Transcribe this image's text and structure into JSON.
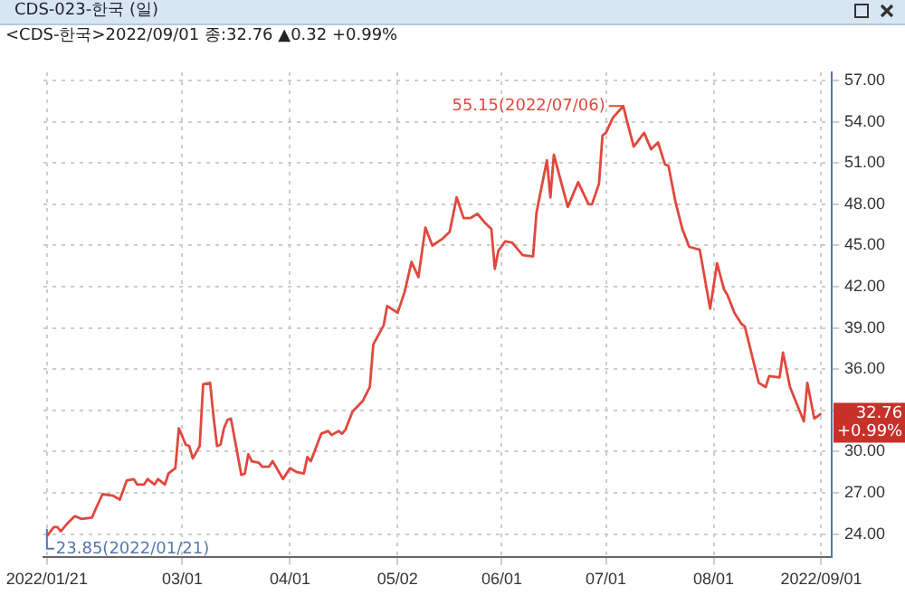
{
  "chart_data": {
    "type": "line",
    "title": "CDS-023-한국 (일)",
    "subtitle": "<CDS-한국>2022/09/01 종:32.76 ▲0.32 +0.99%",
    "x": [
      "2022-01-21",
      "2022-01-23",
      "2022-01-24",
      "2022-01-25",
      "2022-01-27",
      "2022-01-29",
      "2022-01-31",
      "2022-02-03",
      "2022-02-04",
      "2022-02-06",
      "2022-02-09",
      "2022-02-11",
      "2022-02-13",
      "2022-02-15",
      "2022-02-16",
      "2022-02-18",
      "2022-02-19",
      "2022-02-21",
      "2022-02-22",
      "2022-02-24",
      "2022-02-25",
      "2022-02-27",
      "2022-02-28",
      "2022-03-02",
      "2022-03-03",
      "2022-03-04",
      "2022-03-06",
      "2022-03-07",
      "2022-03-09",
      "2022-03-10",
      "2022-03-11",
      "2022-03-12",
      "2022-03-13",
      "2022-03-14",
      "2022-03-15",
      "2022-03-18",
      "2022-03-19",
      "2022-03-20",
      "2022-03-21",
      "2022-03-23",
      "2022-03-24",
      "2022-03-26",
      "2022-03-27",
      "2022-03-30",
      "2022-04-01",
      "2022-04-03",
      "2022-04-05",
      "2022-04-06",
      "2022-04-07",
      "2022-04-10",
      "2022-04-12",
      "2022-04-13",
      "2022-04-15",
      "2022-04-16",
      "2022-04-17",
      "2022-04-19",
      "2022-04-22",
      "2022-04-24",
      "2022-04-25",
      "2022-04-28",
      "2022-04-29",
      "2022-05-02",
      "2022-05-04",
      "2022-05-06",
      "2022-05-08",
      "2022-05-10",
      "2022-05-12",
      "2022-05-15",
      "2022-05-17",
      "2022-05-19",
      "2022-05-21",
      "2022-05-23",
      "2022-05-25",
      "2022-05-27",
      "2022-05-29",
      "2022-05-30",
      "2022-05-31",
      "2022-06-02",
      "2022-06-04",
      "2022-06-07",
      "2022-06-10",
      "2022-06-11",
      "2022-06-14",
      "2022-06-15",
      "2022-06-16",
      "2022-06-18",
      "2022-06-20",
      "2022-06-23",
      "2022-06-26",
      "2022-06-27",
      "2022-06-29",
      "2022-06-30",
      "2022-07-01",
      "2022-07-03",
      "2022-07-06",
      "2022-07-07",
      "2022-07-09",
      "2022-07-12",
      "2022-07-14",
      "2022-07-16",
      "2022-07-18",
      "2022-07-19",
      "2022-07-21",
      "2022-07-23",
      "2022-07-25",
      "2022-07-28",
      "2022-07-31",
      "2022-08-02",
      "2022-08-04",
      "2022-08-05",
      "2022-08-07",
      "2022-08-09",
      "2022-08-10",
      "2022-08-14",
      "2022-08-16",
      "2022-08-17",
      "2022-08-20",
      "2022-08-21",
      "2022-08-23",
      "2022-08-27",
      "2022-08-28",
      "2022-08-30",
      "2022-09-01"
    ],
    "series": [
      {
        "color": "#e0483e",
        "values": [
          23.85,
          24.5,
          24.5,
          24.2,
          24.8,
          25.3,
          25.1,
          25.2,
          25.8,
          26.9,
          26.8,
          26.5,
          27.9,
          28.0,
          27.6,
          27.6,
          28.0,
          27.6,
          28.0,
          27.6,
          28.4,
          28.8,
          31.7,
          30.5,
          30.4,
          29.5,
          30.4,
          34.9,
          35.0,
          32.5,
          30.4,
          30.5,
          31.7,
          32.3,
          32.4,
          28.3,
          28.4,
          29.8,
          29.3,
          29.2,
          28.9,
          28.9,
          29.3,
          28.0,
          28.8,
          28.5,
          28.4,
          29.6,
          29.3,
          31.3,
          31.5,
          31.2,
          31.5,
          31.3,
          31.6,
          32.9,
          33.7,
          34.7,
          37.8,
          39.2,
          40.6,
          40.1,
          41.6,
          43.8,
          42.7,
          46.3,
          45.0,
          45.5,
          46.0,
          48.5,
          47.0,
          47.0,
          47.3,
          46.7,
          46.2,
          43.3,
          44.6,
          45.3,
          45.2,
          44.3,
          44.2,
          47.4,
          51.2,
          48.5,
          51.6,
          49.7,
          47.8,
          49.6,
          48.0,
          48.0,
          49.5,
          53.0,
          53.2,
          54.3,
          55.15,
          54.1,
          52.2,
          53.2,
          52.0,
          52.5,
          50.9,
          50.8,
          48.2,
          46.2,
          44.9,
          44.7,
          40.4,
          43.7,
          41.8,
          41.4,
          40.1,
          39.3,
          39.1,
          35.0,
          34.7,
          35.5,
          35.4,
          37.2,
          34.7,
          32.2,
          35.0,
          32.4,
          32.76
        ]
      }
    ],
    "xlim": [
      "2022-01-20",
      "2022-09-04"
    ],
    "xticks": [
      {
        "value": "2022-01-21",
        "label": "2022/01/21"
      },
      {
        "value": "2022-03-01",
        "label": "03/01"
      },
      {
        "value": "2022-04-01",
        "label": "04/01"
      },
      {
        "value": "2022-05-02",
        "label": "05/02"
      },
      {
        "value": "2022-06-01",
        "label": "06/01"
      },
      {
        "value": "2022-07-01",
        "label": "07/01"
      },
      {
        "value": "2022-08-01",
        "label": "08/01"
      },
      {
        "value": "2022-09-01",
        "label": "2022/09/01"
      }
    ],
    "ylim": [
      22.3,
      57.6
    ],
    "yticks": [
      {
        "value": 24,
        "label": "24.00"
      },
      {
        "value": 27,
        "label": "27.00"
      },
      {
        "value": 30,
        "label": "30.00"
      },
      {
        "value": 33,
        "label": null
      },
      {
        "value": 36,
        "label": "36.00"
      },
      {
        "value": 39,
        "label": "39.00"
      },
      {
        "value": 42,
        "label": "42.00"
      },
      {
        "value": 45,
        "label": "45.00"
      },
      {
        "value": 48,
        "label": "48.00"
      },
      {
        "value": 51,
        "label": "51.00"
      },
      {
        "value": 54,
        "label": "54.00"
      },
      {
        "value": 57,
        "label": "57.00"
      }
    ],
    "annotations": [
      {
        "text": "55.15(2022/07/06)",
        "x": "2022-07-06",
        "y": 55.15
      },
      {
        "text": "23.85(2022/01/21)",
        "x": "2022-01-21",
        "y": 23.85
      },
      "32.76",
      "+0.99%"
    ],
    "grid": true,
    "legend": false,
    "marker": "none",
    "line_style": "solid"
  }
}
